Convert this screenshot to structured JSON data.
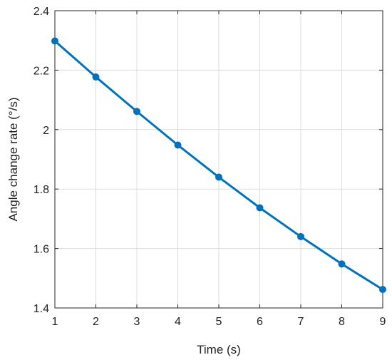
{
  "chart_data": {
    "type": "line",
    "title": "",
    "xlabel": "Time (s)",
    "ylabel": "Angle change rate (°/s)",
    "x": [
      1,
      2,
      3,
      4,
      5,
      6,
      7,
      8,
      9
    ],
    "xlim": [
      1,
      9
    ],
    "ylim": [
      1.4,
      2.4
    ],
    "xticks": [
      1,
      2,
      3,
      4,
      5,
      6,
      7,
      8,
      9
    ],
    "xtick_labels": [
      "1",
      "2",
      "3",
      "4",
      "5",
      "6",
      "7",
      "8",
      "9"
    ],
    "yticks": [
      1.4,
      1.6,
      1.8,
      2.0,
      2.2,
      2.4
    ],
    "ytick_labels": [
      "1.4",
      "1.6",
      "1.8",
      "2",
      "2.2",
      "2.4"
    ],
    "grid": true,
    "legend": "none",
    "series": [
      {
        "values": [
          2.298,
          2.177,
          2.061,
          1.948,
          1.84,
          1.737,
          1.64,
          1.548,
          1.462
        ],
        "color": "#0072BD",
        "marker": "circle"
      }
    ]
  }
}
